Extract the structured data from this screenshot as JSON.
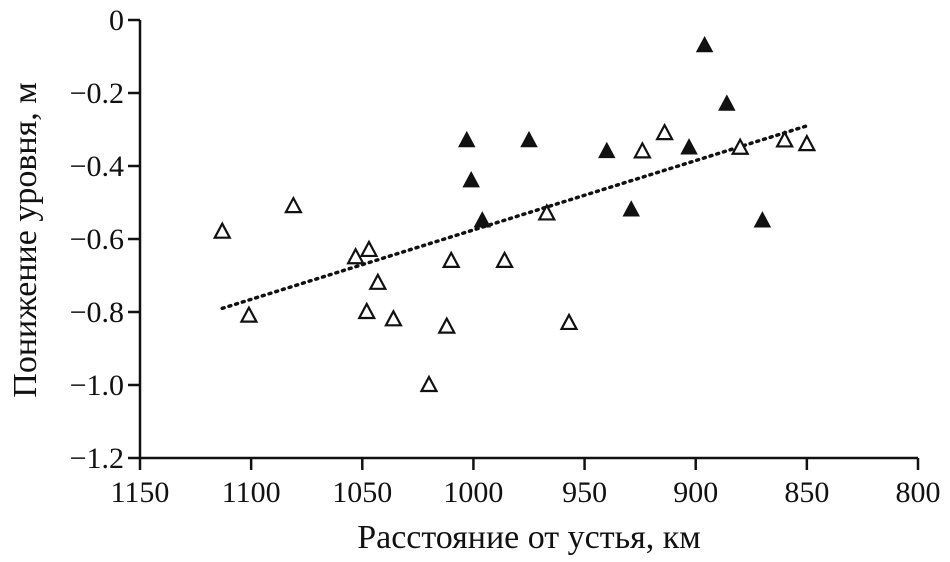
{
  "chart_data": {
    "type": "scatter",
    "title": "",
    "xlabel": "Расстояние от устья, км",
    "ylabel": "Понижение уровня, м",
    "xlim": [
      1150,
      800
    ],
    "ylim": [
      -1.2,
      0
    ],
    "x_reversed": true,
    "grid": false,
    "x_ticks": [
      1150,
      1100,
      1050,
      1000,
      950,
      900,
      850,
      800
    ],
    "x_tick_labels": [
      "1150",
      "1100",
      "1050",
      "1000",
      "950",
      "900",
      "850",
      "800"
    ],
    "y_ticks": [
      0,
      -0.2,
      -0.4,
      -0.6,
      -0.8,
      -1.0,
      -1.2
    ],
    "y_tick_labels": [
      "0",
      "−0.2",
      "−0.4",
      "−0.6",
      "−0.8",
      "−1.0",
      "−1.2"
    ],
    "series": [
      {
        "name": "open-triangles",
        "marker": "triangle-open",
        "points": [
          [
            1113,
            -0.58
          ],
          [
            1101,
            -0.81
          ],
          [
            1081,
            -0.51
          ],
          [
            1053,
            -0.65
          ],
          [
            1047,
            -0.63
          ],
          [
            1043,
            -0.72
          ],
          [
            1048,
            -0.8
          ],
          [
            1036,
            -0.82
          ],
          [
            1020,
            -1.0
          ],
          [
            1012,
            -0.84
          ],
          [
            1010,
            -0.66
          ],
          [
            986,
            -0.66
          ],
          [
            967,
            -0.53
          ],
          [
            957,
            -0.83
          ],
          [
            924,
            -0.36
          ],
          [
            914,
            -0.31
          ],
          [
            880,
            -0.35
          ],
          [
            860,
            -0.33
          ],
          [
            850,
            -0.34
          ]
        ]
      },
      {
        "name": "filled-triangles",
        "marker": "triangle-filled",
        "points": [
          [
            1003,
            -0.33
          ],
          [
            1001,
            -0.44
          ],
          [
            996,
            -0.55
          ],
          [
            975,
            -0.33
          ],
          [
            940,
            -0.36
          ],
          [
            929,
            -0.52
          ],
          [
            903,
            -0.35
          ],
          [
            896,
            -0.07
          ],
          [
            886,
            -0.23
          ],
          [
            870,
            -0.55
          ]
        ]
      }
    ],
    "trendline": {
      "style": "dotted",
      "from": [
        1113,
        -0.79
      ],
      "to": [
        850,
        -0.29
      ]
    }
  }
}
